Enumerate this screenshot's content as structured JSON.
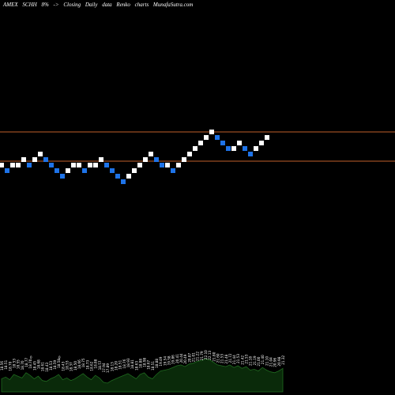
{
  "header": {
    "exchange": "AMEX",
    "ticker": "SCHH",
    "change": "8%",
    "arrow": "->",
    "label": "Closing",
    "period": "Daily",
    "datatype": "data",
    "chart_kind": "Renko",
    "charts_word": "charts",
    "site": "MunafaSutra.com"
  },
  "colors": {
    "background": "#000000",
    "up_brick": "#ffffff",
    "down_brick": "#1e73e8",
    "level_line": "#c0602a",
    "volume_fill": "#0a2a0a",
    "volume_stroke": "#1f6a1f",
    "label_text": "#ffffff"
  },
  "chart_data": {
    "type": "renko",
    "brick_levels": [
      0,
      -1,
      0,
      0,
      1,
      0,
      1,
      2,
      1,
      0,
      -1,
      -2,
      -1,
      0,
      0,
      -1,
      0,
      0,
      1,
      0,
      -1,
      -2,
      -3,
      -2,
      -1,
      0,
      1,
      2,
      1,
      0,
      0,
      -1,
      0,
      1,
      2,
      3,
      4,
      5,
      6,
      5,
      4,
      3,
      3,
      4,
      3,
      2,
      3,
      4,
      5
    ],
    "brick_directions": [
      "up",
      "down",
      "up",
      "up",
      "up",
      "down",
      "up",
      "up",
      "down",
      "down",
      "down",
      "down",
      "up",
      "up",
      "up",
      "down",
      "up",
      "up",
      "up",
      "down",
      "down",
      "down",
      "down",
      "up",
      "up",
      "up",
      "up",
      "up",
      "down",
      "down",
      "up",
      "down",
      "up",
      "up",
      "up",
      "up",
      "up",
      "up",
      "up",
      "down",
      "down",
      "down",
      "up",
      "up",
      "down",
      "down",
      "up",
      "up",
      "up"
    ],
    "upper_level_brick": 5,
    "lower_level_brick": 0,
    "volume_labels": [
      "18.56",
      "18.51",
      "18.70",
      "18.53",
      "18.55",
      "18.70",
      "18.77",
      "18.70",
      "18.45",
      "18.68",
      "18.61",
      "18.43",
      "18.53",
      "18.59",
      "18.58",
      "18.43",
      "18.53",
      "18.37",
      "18.50",
      "18.66",
      "18.75",
      "18.73",
      "18.62",
      "18.88",
      "18.57",
      "17.94",
      "17.89",
      "18.13",
      "18.20",
      "18.51",
      "18.76",
      "18.93",
      "18.81",
      "18.63",
      "18.88",
      "18.98",
      "18.67",
      "18.51",
      "18.88",
      "19.49",
      "19.54",
      "19.58",
      "19.86",
      "20.41",
      "20.44",
      "20.49",
      "20.87",
      "21.01",
      "21.22",
      "21.79",
      "22.10",
      "22.13",
      "21.80",
      "21.60",
      "21.53",
      "21.48",
      "21.72",
      "21.44",
      "21.53",
      "21.42",
      "21.53",
      "21.18",
      "21.19",
      "21.00",
      "21.40",
      "21.10",
      "21.04",
      "20.96",
      "20.98",
      "21.32"
    ],
    "volume_values": [
      30,
      34,
      28,
      40,
      36,
      32,
      44,
      38,
      30,
      36,
      26,
      24,
      30,
      34,
      40,
      28,
      32,
      26,
      30,
      36,
      42,
      34,
      28,
      38,
      32,
      22,
      20,
      26,
      30,
      34,
      38,
      42,
      36,
      30,
      40,
      44,
      34,
      30,
      40,
      48,
      50,
      52,
      56,
      60,
      62,
      58,
      64,
      66,
      70,
      72,
      76,
      74,
      68,
      62,
      60,
      58,
      62,
      56,
      60,
      54,
      58,
      50,
      52,
      48,
      56,
      50,
      46,
      44,
      48,
      54
    ],
    "volume_marker_text": "0"
  }
}
